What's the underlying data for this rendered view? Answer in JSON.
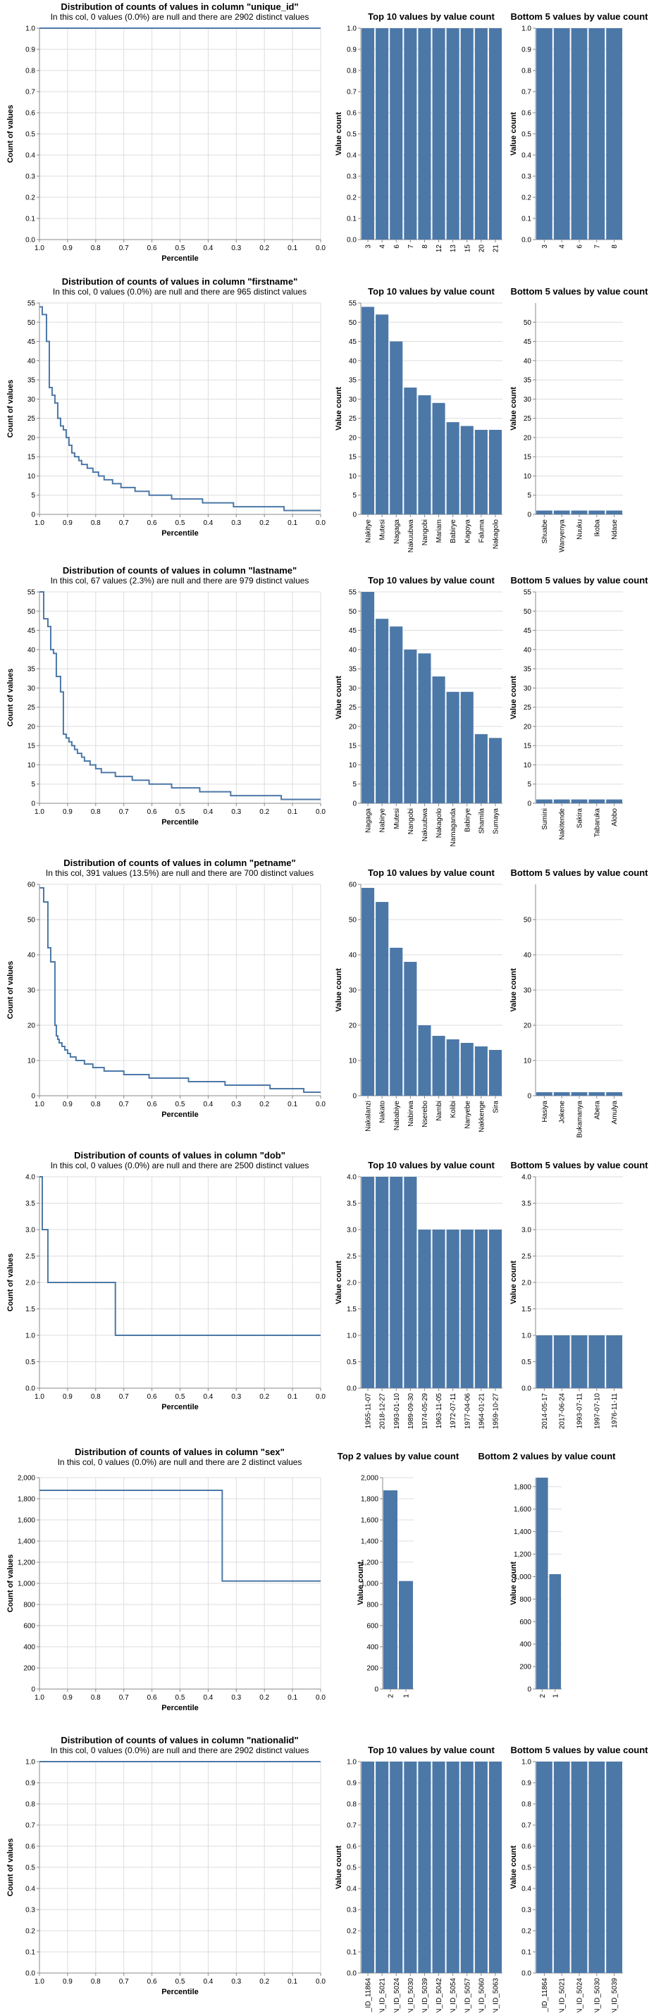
{
  "colors": {
    "bar": "#4c78a8",
    "line": "#4c78a8",
    "grid": "#dddddd",
    "axis": "#888888"
  },
  "chart_data": [
    {
      "column": "unique_id",
      "dist": {
        "type": "line",
        "title": "Distribution of counts of values in column \"unique_id\"",
        "subtitle": "In this col, 0 values (0.0%) are null and there are 2902 distinct values",
        "xlabel": "Percentile",
        "ylabel": "Count of values",
        "xlim": [
          1.0,
          0.0
        ],
        "ylim": [
          0,
          1.0
        ],
        "yticks": [
          0,
          0.1,
          0.2,
          0.3,
          0.4,
          0.5,
          0.6,
          0.7,
          0.8,
          0.9,
          1.0
        ],
        "ytick_decimals": 1,
        "steps": [
          [
            1.0,
            1
          ],
          [
            0.0,
            1
          ]
        ]
      },
      "top": {
        "type": "bar",
        "title": "Top 10 values by value count",
        "ylabel": "Value count",
        "ylim": [
          0,
          1.0
        ],
        "yticks": [
          0,
          0.1,
          0.2,
          0.3,
          0.4,
          0.5,
          0.6,
          0.7,
          0.8,
          0.9,
          1.0
        ],
        "ytick_decimals": 1,
        "categories": [
          "3",
          "4",
          "6",
          "7",
          "8",
          "12",
          "13",
          "15",
          "20",
          "21"
        ],
        "values": [
          1,
          1,
          1,
          1,
          1,
          1,
          1,
          1,
          1,
          1
        ]
      },
      "bottom": {
        "type": "bar",
        "title": "Bottom 5 values by value count",
        "ylabel": "Value count",
        "ylim": [
          0,
          1.0
        ],
        "yticks": [
          0,
          0.1,
          0.2,
          0.3,
          0.4,
          0.5,
          0.6,
          0.7,
          0.8,
          0.9,
          1.0
        ],
        "ytick_decimals": 1,
        "categories": [
          "3",
          "4",
          "6",
          "7",
          "8"
        ],
        "values": [
          1,
          1,
          1,
          1,
          1
        ]
      }
    },
    {
      "column": "firstname",
      "dist": {
        "type": "line",
        "title": "Distribution of counts of values in column \"firstname\"",
        "subtitle": "In this col, 0 values (0.0%) are null and there are 965 distinct values",
        "xlabel": "Percentile",
        "ylabel": "Count of values",
        "xlim": [
          1.0,
          0.0
        ],
        "ylim": [
          0,
          55
        ],
        "yticks": [
          0,
          5,
          10,
          15,
          20,
          25,
          30,
          35,
          40,
          45,
          50,
          55
        ],
        "ytick_decimals": 0,
        "steps": [
          [
            1.0,
            54
          ],
          [
            0.99,
            52
          ],
          [
            0.975,
            45
          ],
          [
            0.965,
            33
          ],
          [
            0.955,
            31
          ],
          [
            0.945,
            29
          ],
          [
            0.935,
            25
          ],
          [
            0.925,
            23
          ],
          [
            0.915,
            22
          ],
          [
            0.905,
            20
          ],
          [
            0.895,
            18
          ],
          [
            0.885,
            16
          ],
          [
            0.875,
            15
          ],
          [
            0.86,
            14
          ],
          [
            0.85,
            13
          ],
          [
            0.83,
            12
          ],
          [
            0.81,
            11
          ],
          [
            0.79,
            10
          ],
          [
            0.77,
            9
          ],
          [
            0.74,
            8
          ],
          [
            0.71,
            7
          ],
          [
            0.66,
            6
          ],
          [
            0.61,
            5
          ],
          [
            0.53,
            4
          ],
          [
            0.42,
            3
          ],
          [
            0.31,
            2
          ],
          [
            0.13,
            1
          ],
          [
            0.0,
            1
          ]
        ]
      },
      "top": {
        "type": "bar",
        "title": "Top 10 values by value count",
        "ylabel": "Value count",
        "ylim": [
          0,
          55
        ],
        "yticks": [
          0,
          5,
          10,
          15,
          20,
          25,
          30,
          35,
          40,
          45,
          50,
          55
        ],
        "ytick_decimals": 0,
        "categories": [
          "Nakitye",
          "Mutesi",
          "Nagaga",
          "Nakuubwa",
          "Nangobi",
          "Mariam",
          "Babirye",
          "Kagoya",
          "Faluma",
          "Nakagolo"
        ],
        "values": [
          54,
          52,
          45,
          33,
          31,
          29,
          24,
          23,
          22,
          22
        ]
      },
      "bottom": {
        "type": "bar",
        "title": "Bottom 5 values by value count",
        "ylabel": "Value count",
        "ylim": [
          0,
          55
        ],
        "yticks": [
          0,
          5,
          10,
          15,
          20,
          25,
          30,
          35,
          40,
          45,
          50
        ],
        "ytick_decimals": 0,
        "categories": [
          "Shuabe",
          "Wanyenya",
          "Nuuku",
          "Ikoba",
          "Ndase"
        ],
        "values": [
          1,
          1,
          1,
          1,
          1
        ]
      }
    },
    {
      "column": "lastname",
      "dist": {
        "type": "line",
        "title": "Distribution of counts of values in column \"lastname\"",
        "subtitle": "In this col, 67 values (2.3%) are null and there are 979 distinct values",
        "xlabel": "Percentile",
        "ylabel": "Count of values",
        "xlim": [
          1.0,
          0.0
        ],
        "ylim": [
          0,
          55
        ],
        "yticks": [
          0,
          5,
          10,
          15,
          20,
          25,
          30,
          35,
          40,
          45,
          50,
          55
        ],
        "ytick_decimals": 0,
        "steps": [
          [
            1.0,
            55
          ],
          [
            0.985,
            48
          ],
          [
            0.97,
            46
          ],
          [
            0.96,
            40
          ],
          [
            0.95,
            39
          ],
          [
            0.94,
            33
          ],
          [
            0.925,
            29
          ],
          [
            0.915,
            18
          ],
          [
            0.905,
            17
          ],
          [
            0.895,
            16
          ],
          [
            0.885,
            15
          ],
          [
            0.875,
            14
          ],
          [
            0.865,
            13
          ],
          [
            0.85,
            12
          ],
          [
            0.84,
            11
          ],
          [
            0.82,
            10
          ],
          [
            0.8,
            9
          ],
          [
            0.78,
            8
          ],
          [
            0.73,
            7
          ],
          [
            0.67,
            6
          ],
          [
            0.61,
            5
          ],
          [
            0.53,
            4
          ],
          [
            0.43,
            3
          ],
          [
            0.32,
            2
          ],
          [
            0.14,
            1
          ],
          [
            0.0,
            1
          ]
        ]
      },
      "top": {
        "type": "bar",
        "title": "Top 10 values by value count",
        "ylabel": "Value count",
        "ylim": [
          0,
          55
        ],
        "yticks": [
          0,
          5,
          10,
          15,
          20,
          25,
          30,
          35,
          40,
          45,
          50,
          55
        ],
        "ytick_decimals": 0,
        "categories": [
          "Nagaga",
          "Nabirye",
          "Mutesi",
          "Nangobi",
          "Nakuubwa",
          "Nakagolo",
          "Namaganda",
          "Babirye",
          "Shamila",
          "Sumaya"
        ],
        "values": [
          55,
          48,
          46,
          40,
          39,
          33,
          29,
          29,
          18,
          17
        ]
      },
      "bottom": {
        "type": "bar",
        "title": "Bottom 5 values by value count",
        "ylabel": "Value count",
        "ylim": [
          0,
          55
        ],
        "yticks": [
          0,
          5,
          10,
          15,
          20,
          25,
          30,
          35,
          40,
          45,
          50,
          55
        ],
        "ytick_decimals": 0,
        "categories": [
          "Sumini",
          "Nakitende",
          "Sakira",
          "Tabaruka",
          "Alobo"
        ],
        "values": [
          1,
          1,
          1,
          1,
          1
        ]
      }
    },
    {
      "column": "petname",
      "dist": {
        "type": "line",
        "title": "Distribution of counts of values in column \"petname\"",
        "subtitle": "In this col, 391 values (13.5%) are null and there are 700 distinct values",
        "xlabel": "Percentile",
        "ylabel": "Count of values",
        "xlim": [
          1.0,
          0.0
        ],
        "ylim": [
          0,
          60
        ],
        "yticks": [
          0,
          10,
          20,
          30,
          40,
          50,
          60
        ],
        "ytick_decimals": 0,
        "steps": [
          [
            1.0,
            59
          ],
          [
            0.985,
            55
          ],
          [
            0.97,
            42
          ],
          [
            0.96,
            38
          ],
          [
            0.945,
            20
          ],
          [
            0.94,
            17
          ],
          [
            0.935,
            16
          ],
          [
            0.93,
            15
          ],
          [
            0.92,
            14
          ],
          [
            0.91,
            13
          ],
          [
            0.9,
            12
          ],
          [
            0.89,
            11
          ],
          [
            0.87,
            10
          ],
          [
            0.84,
            9
          ],
          [
            0.81,
            8
          ],
          [
            0.77,
            7
          ],
          [
            0.7,
            6
          ],
          [
            0.61,
            5
          ],
          [
            0.47,
            4
          ],
          [
            0.34,
            3
          ],
          [
            0.18,
            2
          ],
          [
            0.06,
            1
          ],
          [
            0.0,
            1
          ]
        ]
      },
      "top": {
        "type": "bar",
        "title": "Top 10 values by value count",
        "ylabel": "Value count",
        "ylim": [
          0,
          60
        ],
        "yticks": [
          0,
          10,
          20,
          30,
          40,
          50,
          60
        ],
        "ytick_decimals": 0,
        "categories": [
          "Nakalanzi",
          "Nakato",
          "Nababiye",
          "Nabirwa",
          "Nserebo",
          "Nambi",
          "Kolibi",
          "Nanyebe",
          "Nakkenge",
          "Sira"
        ],
        "values": [
          59,
          55,
          42,
          38,
          20,
          17,
          16,
          15,
          14,
          13
        ]
      },
      "bottom": {
        "type": "bar",
        "title": "Bottom 5 values by value count",
        "ylabel": "Value count",
        "ylim": [
          0,
          60
        ],
        "yticks": [
          0,
          10,
          20,
          30,
          40,
          50
        ],
        "ytick_decimals": 0,
        "categories": [
          "Hasiya",
          "Jokene",
          "Bukamanya",
          "Abera",
          "Amulya"
        ],
        "values": [
          1,
          1,
          1,
          1,
          1
        ]
      }
    },
    {
      "column": "dob",
      "dist": {
        "type": "line",
        "title": "Distribution of counts of values in column \"dob\"",
        "subtitle": "In this col, 0 values (0.0%) are null and there are 2500 distinct values",
        "xlabel": "Percentile",
        "ylabel": "Count of values",
        "xlim": [
          1.0,
          0.0
        ],
        "ylim": [
          0,
          4.0
        ],
        "yticks": [
          0,
          0.5,
          1.0,
          1.5,
          2.0,
          2.5,
          3.0,
          3.5,
          4.0
        ],
        "ytick_decimals": 1,
        "steps": [
          [
            1.0,
            4
          ],
          [
            0.99,
            3
          ],
          [
            0.97,
            2
          ],
          [
            0.73,
            1
          ],
          [
            0.0,
            1
          ]
        ]
      },
      "top": {
        "type": "bar",
        "title": "Top 10 values by value count",
        "ylabel": "Value count",
        "ylim": [
          0,
          4.0
        ],
        "yticks": [
          0,
          0.5,
          1.0,
          1.5,
          2.0,
          2.5,
          3.0,
          3.5,
          4.0
        ],
        "ytick_decimals": 1,
        "categories": [
          "1955-11-07",
          "2018-12-27",
          "1993-01-10",
          "1989-09-30",
          "1974-05-29",
          "1963-11-05",
          "1972-07-11",
          "1977-04-06",
          "1964-01-21",
          "1959-10-27"
        ],
        "values": [
          4,
          4,
          4,
          4,
          3,
          3,
          3,
          3,
          3,
          3
        ]
      },
      "bottom": {
        "type": "bar",
        "title": "Bottom 5 values by value count",
        "ylabel": "Value count",
        "ylim": [
          0,
          4.0
        ],
        "yticks": [
          0,
          0.5,
          1.0,
          1.5,
          2.0,
          2.5,
          3.0,
          3.5,
          4.0
        ],
        "ytick_decimals": 1,
        "categories": [
          "2014-05-17",
          "2017-06-24",
          "1993-07-11",
          "1997-07-10",
          "1976-11-11"
        ],
        "values": [
          1,
          1,
          1,
          1,
          1
        ]
      }
    },
    {
      "column": "sex",
      "dist": {
        "type": "line",
        "title": "Distribution of counts of values in column \"sex\"",
        "subtitle": "In this col, 0 values (0.0%) are null and there are 2 distinct values",
        "xlabel": "Percentile",
        "ylabel": "Count of values",
        "xlim": [
          1.0,
          0.0
        ],
        "ylim": [
          0,
          2000
        ],
        "yticks": [
          0,
          200,
          400,
          600,
          800,
          1000,
          1200,
          1400,
          1600,
          1800,
          2000
        ],
        "ytick_decimals": 0,
        "steps": [
          [
            1.0,
            1880
          ],
          [
            0.35,
            1022
          ],
          [
            0.0,
            1022
          ]
        ]
      },
      "top": {
        "type": "bar",
        "title": "Top 2 values by value count",
        "ylabel": "Value count",
        "ylim": [
          0,
          2000
        ],
        "yticks": [
          0,
          200,
          400,
          600,
          800,
          1000,
          1200,
          1400,
          1600,
          1800,
          2000
        ],
        "ytick_decimals": 0,
        "categories": [
          "2",
          "1"
        ],
        "values": [
          1880,
          1022
        ]
      },
      "bottom": {
        "type": "bar",
        "title": "Bottom 2 values by value count",
        "ylabel": "Value count",
        "ylim": [
          0,
          1880
        ],
        "yticks": [
          0,
          200,
          400,
          600,
          800,
          1000,
          1200,
          1400,
          1600,
          1800
        ],
        "ytick_decimals": 0,
        "categories": [
          "2",
          "1"
        ],
        "values": [
          1880,
          1022
        ]
      }
    },
    {
      "column": "nationalid",
      "dist": {
        "type": "line",
        "title": "Distribution of counts of values in column \"nationalid\"",
        "subtitle": "In this col, 0 values (0.0%) are null and there are 2902 distinct values",
        "xlabel": "Percentile",
        "ylabel": "Count of values",
        "xlim": [
          1.0,
          0.0
        ],
        "ylim": [
          0,
          1.0
        ],
        "yticks": [
          0,
          0.1,
          0.2,
          0.3,
          0.4,
          0.5,
          0.6,
          0.7,
          0.8,
          0.9,
          1.0
        ],
        "ytick_decimals": 1,
        "steps": [
          [
            1.0,
            1
          ],
          [
            0.0,
            1
          ]
        ]
      },
      "top": {
        "type": "bar",
        "title": "Top 10 values by value count",
        "ylabel": "Value count",
        "ylim": [
          0,
          1.0
        ],
        "yticks": [
          0,
          0.1,
          0.2,
          0.3,
          0.4,
          0.5,
          0.6,
          0.7,
          0.8,
          0.9,
          1.0
        ],
        "ytick_decimals": 1,
        "categories": [
          "N_ID_11864",
          "N_ID_5021",
          "N_ID_5024",
          "N_ID_5030",
          "N_ID_5039",
          "N_ID_5042",
          "N_ID_5054",
          "N_ID_5057",
          "N_ID_5060",
          "N_ID_5063"
        ],
        "values": [
          1,
          1,
          1,
          1,
          1,
          1,
          1,
          1,
          1,
          1
        ]
      },
      "bottom": {
        "type": "bar",
        "title": "Bottom 5 values by value count",
        "ylabel": "Value count",
        "ylim": [
          0,
          1.0
        ],
        "yticks": [
          0,
          0.1,
          0.2,
          0.3,
          0.4,
          0.5,
          0.6,
          0.7,
          0.8,
          0.9,
          1.0
        ],
        "ytick_decimals": 1,
        "categories": [
          "N_ID_11864",
          "N_ID_5021",
          "N_ID_5024",
          "N_ID_5030",
          "N_ID_5039"
        ],
        "values": [
          1,
          1,
          1,
          1,
          1
        ]
      }
    }
  ]
}
